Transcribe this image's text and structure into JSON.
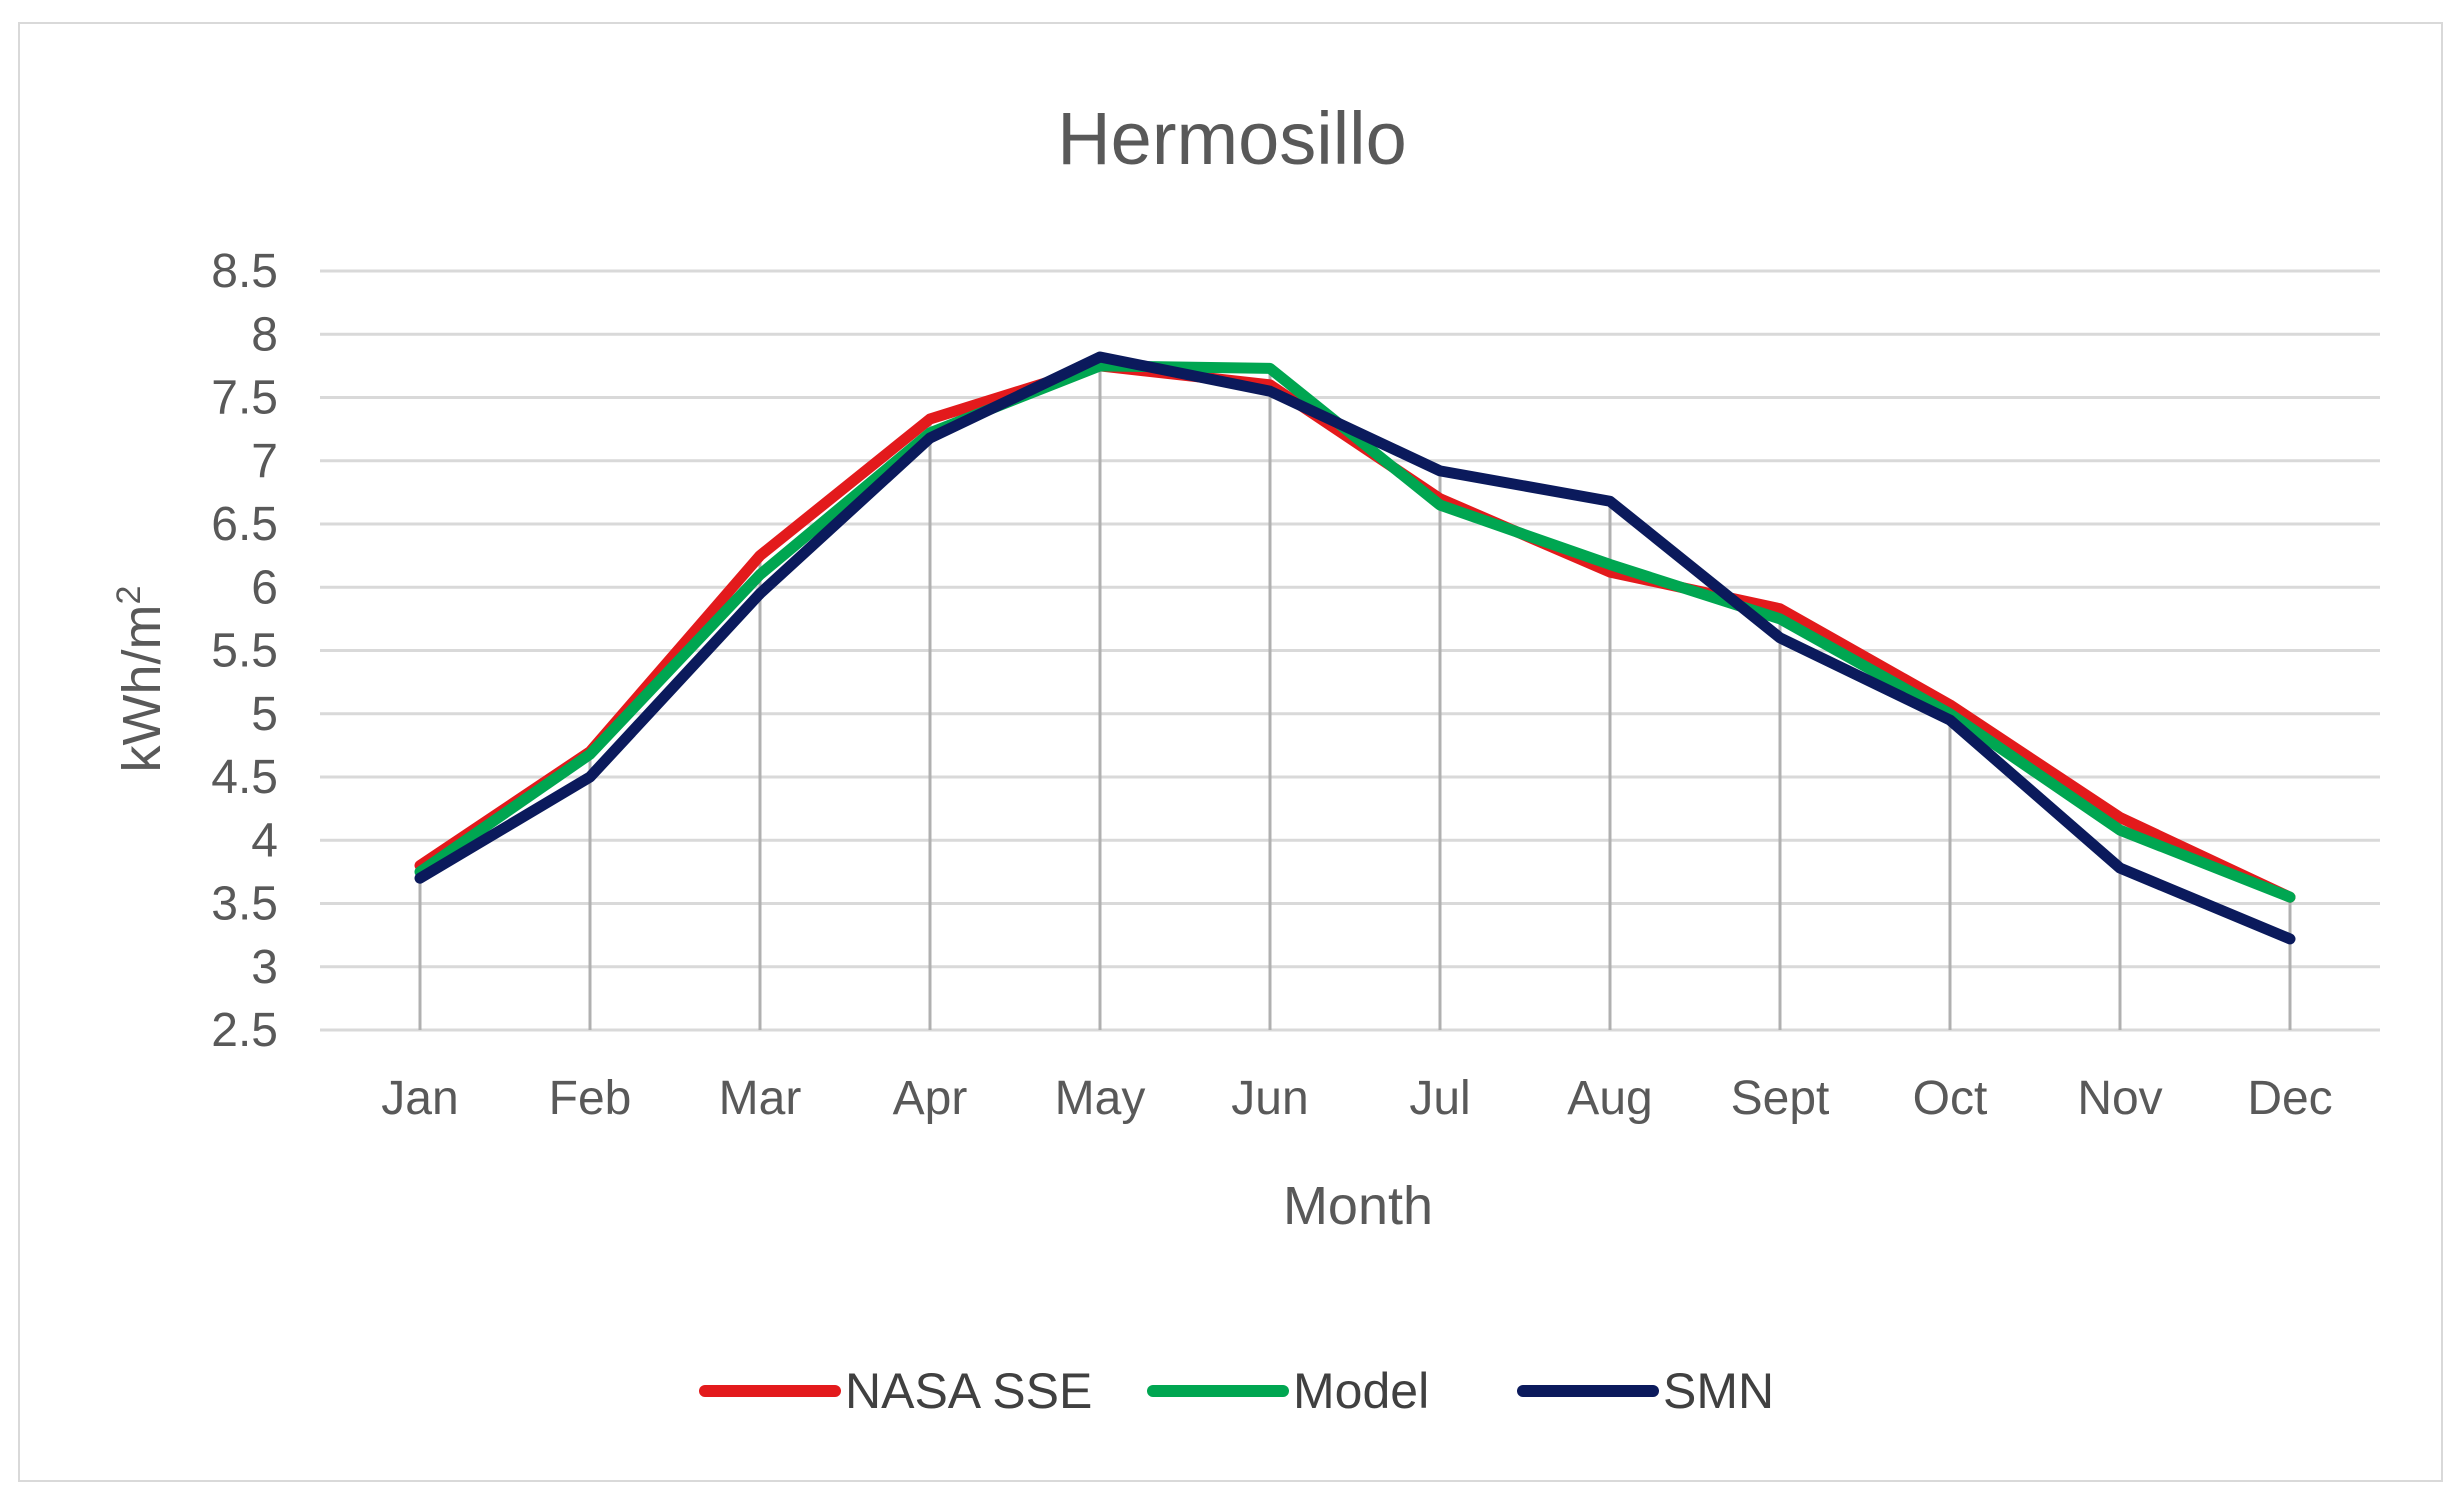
{
  "chart_data": {
    "type": "line",
    "title": "Hermosillo",
    "xlabel": "Month",
    "ylabel": "kWh/m",
    "ylabel_superscript": "2",
    "categories": [
      "Jan",
      "Feb",
      "Mar",
      "Apr",
      "May",
      "Jun",
      "Jul",
      "Aug",
      "Sept",
      "Oct",
      "Nov",
      "Dec"
    ],
    "ylim": [
      2.5,
      8.5
    ],
    "yticks": [
      "2.5",
      "3",
      "3.5",
      "4",
      "4.5",
      "5",
      "5.5",
      "6",
      "6.5",
      "7",
      "7.5",
      "8",
      "8.5"
    ],
    "grid": true,
    "legend_position": "bottom",
    "series": [
      {
        "name": "NASA SSE",
        "color": "#e31a1c",
        "values": [
          3.8,
          4.7,
          6.25,
          7.33,
          7.75,
          7.6,
          6.7,
          6.12,
          5.83,
          5.07,
          4.18,
          3.55
        ]
      },
      {
        "name": "Model",
        "color": "#00a651",
        "values": [
          3.75,
          4.68,
          6.1,
          7.22,
          7.75,
          7.73,
          6.65,
          6.18,
          5.75,
          5.0,
          4.08,
          3.55
        ]
      },
      {
        "name": "SMN",
        "color": "#0b1a5c",
        "values": [
          3.7,
          4.5,
          5.95,
          7.18,
          7.82,
          7.55,
          6.92,
          6.68,
          5.6,
          4.95,
          3.78,
          3.22
        ]
      }
    ]
  }
}
